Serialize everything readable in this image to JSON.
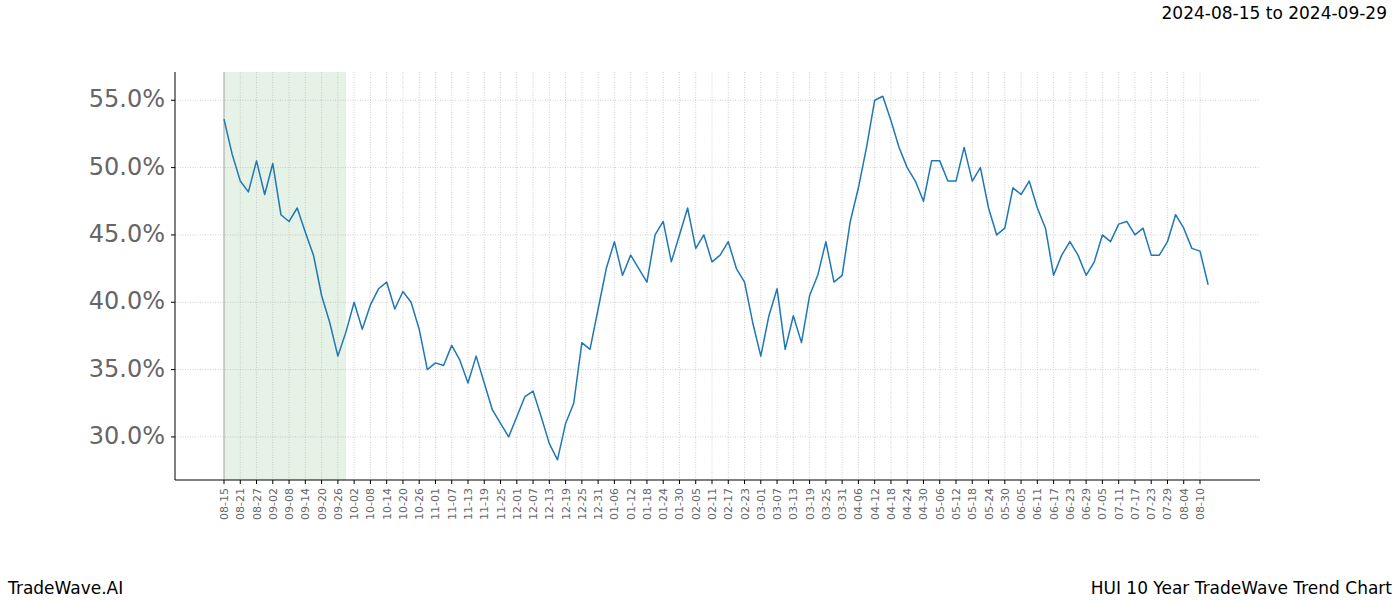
{
  "chart_data": {
    "type": "line",
    "title": "HUI 10 Year TradeWave Trend Chart",
    "subtitle": "2024-08-15 to 2024-09-29",
    "source": "TradeWave.AI",
    "color": "#1f77b4",
    "grid": true,
    "highlight": [
      0,
      15
    ],
    "ylim": [
      26.8,
      57.1
    ],
    "yticks": [
      {
        "value": 30,
        "label": "30.0%"
      },
      {
        "value": 35,
        "label": "35.0%"
      },
      {
        "value": 40,
        "label": "40.0%"
      },
      {
        "value": 45,
        "label": "45.0%"
      },
      {
        "value": 50,
        "label": "50.0%"
      },
      {
        "value": 55,
        "label": "55.0%"
      }
    ],
    "categories": [
      "08-15",
      null,
      "08-21",
      null,
      "08-27",
      null,
      "09-02",
      null,
      "09-08",
      null,
      "09-14",
      null,
      "09-20",
      null,
      "09-26",
      null,
      "10-02",
      null,
      "10-08",
      null,
      "10-14",
      null,
      "10-20",
      null,
      "10-26",
      null,
      "11-01",
      null,
      "11-07",
      null,
      "11-13",
      null,
      "11-19",
      null,
      "11-25",
      null,
      "12-01",
      null,
      "12-07",
      null,
      "12-13",
      null,
      "12-19",
      null,
      "12-25",
      null,
      "12-31",
      null,
      "01-06",
      null,
      "01-12",
      null,
      "01-18",
      null,
      "01-24",
      null,
      "01-30",
      null,
      "02-05",
      null,
      "02-11",
      null,
      "02-17",
      null,
      "02-23",
      null,
      "03-01",
      null,
      "03-07",
      null,
      "03-13",
      null,
      "03-19",
      null,
      "03-25",
      null,
      "03-31",
      null,
      "04-06",
      null,
      "04-12",
      null,
      "04-18",
      null,
      "04-24",
      null,
      "04-30",
      null,
      "05-06",
      null,
      "05-12",
      null,
      "05-18",
      null,
      "05-24",
      null,
      "05-30",
      null,
      "06-05",
      null,
      "06-11",
      null,
      "06-17",
      null,
      "06-23",
      null,
      "06-29",
      null,
      "07-05",
      null,
      "07-11",
      null,
      "07-17",
      null,
      "07-23",
      null,
      "07-29",
      null,
      "08-04",
      null,
      "08-10",
      null
    ],
    "values": [
      53.6,
      51.0,
      49.0,
      48.2,
      50.5,
      48.0,
      50.3,
      46.5,
      46.0,
      47.0,
      45.2,
      43.5,
      40.5,
      38.5,
      36.0,
      37.8,
      40.0,
      38.0,
      39.8,
      41.0,
      41.5,
      39.5,
      40.8,
      40.0,
      38.0,
      35.0,
      35.5,
      35.3,
      36.8,
      35.7,
      34.0,
      36.0,
      34.0,
      32.0,
      31.0,
      30.0,
      31.5,
      33.0,
      33.4,
      31.5,
      29.5,
      28.3,
      31.0,
      32.5,
      37.0,
      36.5,
      39.5,
      42.5,
      44.5,
      42.0,
      43.5,
      42.5,
      41.5,
      45.0,
      46.0,
      43.0,
      45.0,
      47.0,
      44.0,
      45.0,
      43.0,
      43.5,
      44.5,
      42.5,
      41.5,
      38.5,
      36.0,
      39.0,
      41.0,
      36.5,
      39.0,
      37.0,
      40.5,
      42.0,
      44.5,
      41.5,
      42.0,
      46.0,
      48.5,
      51.5,
      55.0,
      55.3,
      53.5,
      51.5,
      50.0,
      49.0,
      47.5,
      50.5,
      50.5,
      49.0,
      49.0,
      51.5,
      49.0,
      50.0,
      47.0,
      45.0,
      45.5,
      48.5,
      48.0,
      49.0,
      47.0,
      45.5,
      42.0,
      43.5,
      44.5,
      43.5,
      42.0,
      43.0,
      45.0,
      44.5,
      45.8,
      46.0,
      45.0,
      45.5,
      43.5,
      43.5,
      44.5,
      46.5,
      45.5,
      44.0,
      43.8,
      41.3
    ]
  }
}
